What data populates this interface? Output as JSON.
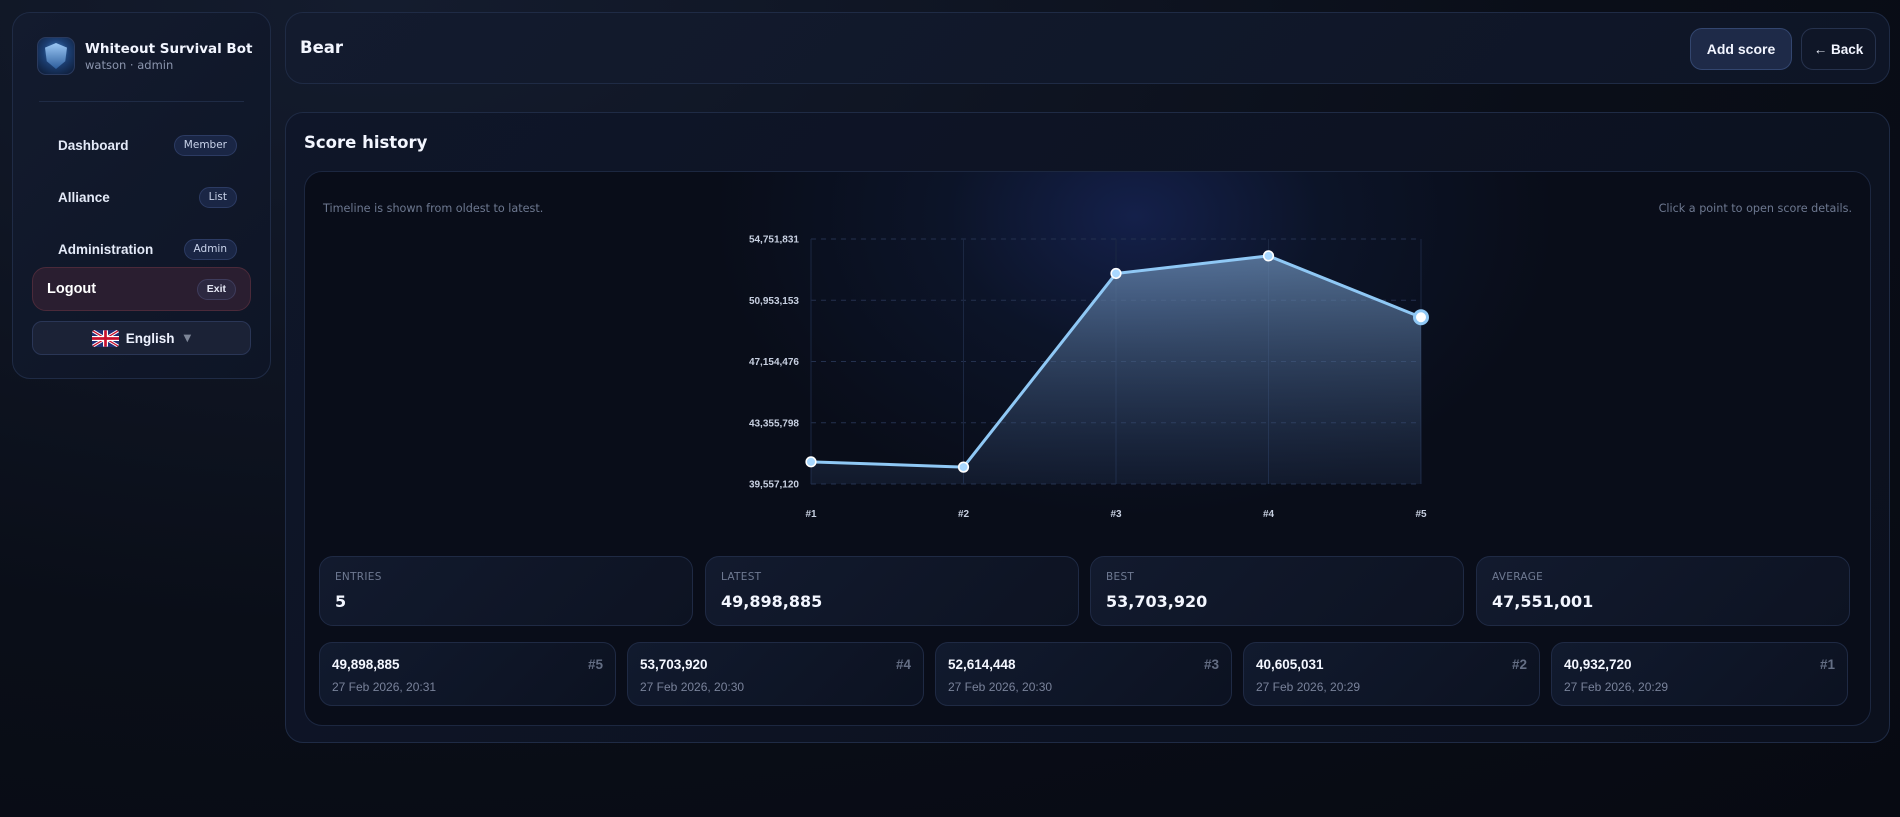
{
  "sidebar": {
    "brand_title": "Whiteout Survival Bot",
    "brand_subtitle": "watson · admin",
    "items": [
      {
        "label": "Dashboard",
        "badge": "Member"
      },
      {
        "label": "Alliance",
        "badge": "List"
      },
      {
        "label": "Administration",
        "badge": "Admin"
      },
      {
        "label": "Logout",
        "badge": "Exit"
      }
    ],
    "language": {
      "label": "English",
      "caret": "▼",
      "flag_icon": "uk-flag-icon"
    }
  },
  "header": {
    "title": "Bear",
    "add_score_label": "Add score",
    "back_label": "← Back"
  },
  "main": {
    "section_title": "Score history",
    "hint_left": "Timeline is shown from oldest to latest.",
    "hint_right": "Click a point to open score details.",
    "stats": [
      {
        "label": "ENTRIES",
        "value": "5"
      },
      {
        "label": "LATEST",
        "value": "49,898,885"
      },
      {
        "label": "BEST",
        "value": "53,703,920"
      },
      {
        "label": "AVERAGE",
        "value": "47,551,001"
      }
    ],
    "entries": [
      {
        "score": "49,898,885",
        "rank": "#5",
        "date": "27 Feb 2026, 20:31"
      },
      {
        "score": "53,703,920",
        "rank": "#4",
        "date": "27 Feb 2026, 20:30"
      },
      {
        "score": "52,614,448",
        "rank": "#3",
        "date": "27 Feb 2026, 20:30"
      },
      {
        "score": "40,605,031",
        "rank": "#2",
        "date": "27 Feb 2026, 20:29"
      },
      {
        "score": "40,932,720",
        "rank": "#1",
        "date": "27 Feb 2026, 20:29"
      }
    ]
  },
  "colors": {
    "line": "#8fc8f5",
    "point_fill": "#a9d8ff",
    "point_stroke": "#ffffff",
    "area_top": "#5a7aa0",
    "grid": "#24314f",
    "logout_bg": "#2a1e30"
  },
  "chart_data": {
    "type": "line",
    "title": "Score history",
    "categories": [
      "#1",
      "#2",
      "#3",
      "#4",
      "#5"
    ],
    "values": [
      40932720,
      40605031,
      52614448,
      53703920,
      49898885
    ],
    "y_ticks": [
      "54,751,831",
      "50,953,153",
      "47,154,476",
      "43,355,798",
      "39,557,120"
    ],
    "ylim": [
      39557120,
      54751831
    ],
    "xlabel": "",
    "ylabel": "",
    "grid": true,
    "area_fill": true,
    "highlighted_point": "#5"
  }
}
